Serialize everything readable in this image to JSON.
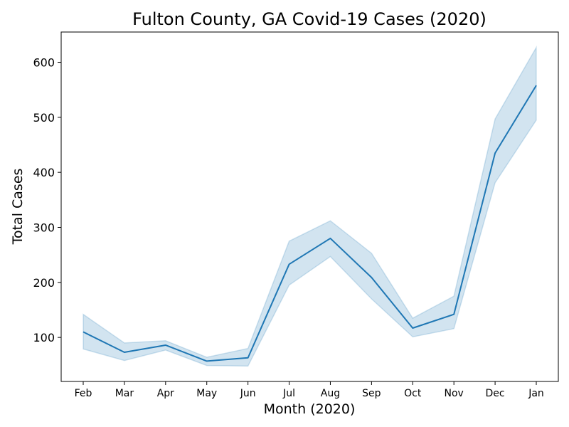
{
  "chart_data": {
    "type": "line",
    "title": "Fulton County, GA Covid-19 Cases (2020)",
    "xlabel": "Month (2020)",
    "ylabel": "Total Cases",
    "categories": [
      "Feb",
      "Mar",
      "Apr",
      "May",
      "Jun",
      "Jul",
      "Aug",
      "Sep",
      "Oct",
      "Nov",
      "Dec",
      "Jan"
    ],
    "series": [
      {
        "values": [
          110,
          73,
          86,
          57,
          63,
          233,
          280,
          209,
          117,
          142,
          435,
          558
        ],
        "lower": [
          79,
          58,
          77,
          49,
          48,
          195,
          247,
          170,
          101,
          116,
          381,
          495
        ],
        "upper": [
          142,
          90,
          94,
          64,
          80,
          275,
          312,
          253,
          135,
          175,
          497,
          627
        ],
        "color": "#1f77b4",
        "band_color": "#1f77b4"
      }
    ],
    "ylim": [
      20,
      655
    ],
    "yticks": [
      100,
      200,
      300,
      400,
      500,
      600
    ],
    "grid": false,
    "legend": "none"
  }
}
